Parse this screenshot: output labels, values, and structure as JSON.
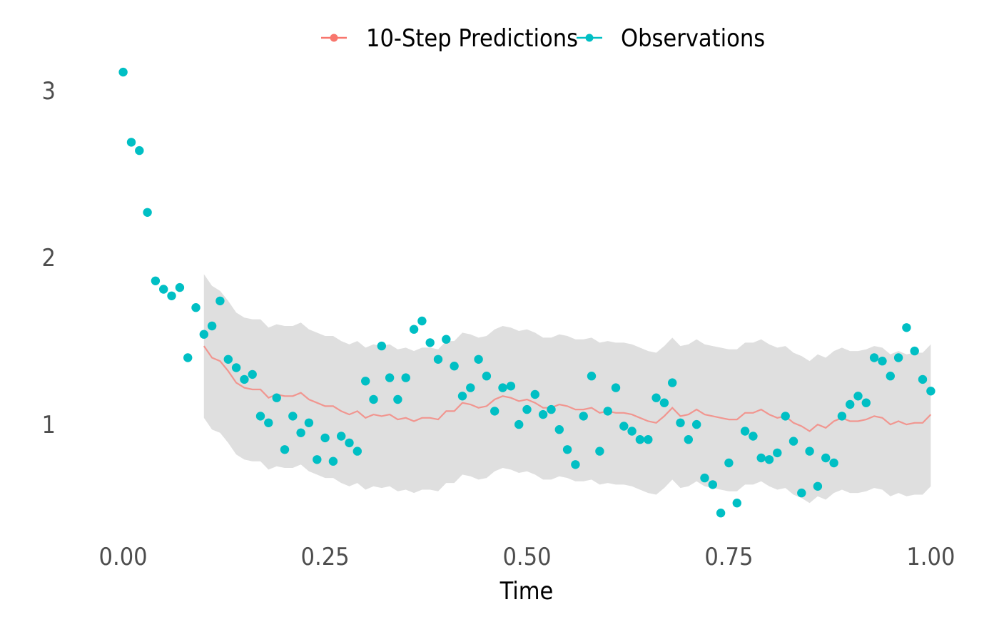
{
  "chart_data": {
    "type": "line",
    "title": "",
    "xlabel": "Time",
    "ylabel": "",
    "xlim": [
      -0.02,
      1.02
    ],
    "ylim": [
      0.36,
      3.2
    ],
    "x_ticks": [
      {
        "value": 0.0,
        "label": "0.00"
      },
      {
        "value": 0.25,
        "label": "0.25"
      },
      {
        "value": 0.5,
        "label": "0.50"
      },
      {
        "value": 0.75,
        "label": "0.75"
      },
      {
        "value": 1.0,
        "label": "1.00"
      }
    ],
    "y_ticks": [
      {
        "value": 1,
        "label": "1"
      },
      {
        "value": 2,
        "label": "2"
      },
      {
        "value": 3,
        "label": "3"
      }
    ],
    "grid": false,
    "legend": {
      "position": "top",
      "entries": [
        {
          "label": "10-Step Predictions",
          "color": "#F8766D"
        },
        {
          "label": "Observations",
          "color": "#00BFC4"
        }
      ]
    },
    "series": [
      {
        "name": "Observations",
        "type": "scatter",
        "color": "#00BFC4",
        "x": [
          0.0,
          0.01,
          0.02,
          0.03,
          0.04,
          0.05,
          0.06,
          0.07,
          0.08,
          0.09,
          0.1,
          0.11,
          0.12,
          0.13,
          0.14,
          0.15,
          0.16,
          0.17,
          0.18,
          0.19,
          0.2,
          0.21,
          0.22,
          0.23,
          0.24,
          0.25,
          0.26,
          0.27,
          0.28,
          0.29,
          0.3,
          0.31,
          0.32,
          0.33,
          0.34,
          0.35,
          0.36,
          0.37,
          0.38,
          0.39,
          0.4,
          0.41,
          0.42,
          0.43,
          0.44,
          0.45,
          0.46,
          0.47,
          0.48,
          0.49,
          0.5,
          0.51,
          0.52,
          0.53,
          0.54,
          0.55,
          0.56,
          0.57,
          0.58,
          0.59,
          0.6,
          0.61,
          0.62,
          0.63,
          0.64,
          0.65,
          0.66,
          0.67,
          0.68,
          0.69,
          0.7,
          0.71,
          0.72,
          0.73,
          0.74,
          0.75,
          0.76,
          0.77,
          0.78,
          0.79,
          0.8,
          0.81,
          0.82,
          0.83,
          0.84,
          0.85,
          0.86,
          0.87,
          0.88,
          0.89,
          0.9,
          0.91,
          0.92,
          0.93,
          0.94,
          0.95,
          0.96,
          0.97,
          0.98,
          0.99,
          1.0
        ],
        "y": [
          3.11,
          2.69,
          2.64,
          2.27,
          1.86,
          1.81,
          1.77,
          1.82,
          1.4,
          1.7,
          1.54,
          1.59,
          1.74,
          1.39,
          1.34,
          1.27,
          1.3,
          1.05,
          1.01,
          1.16,
          0.85,
          1.05,
          0.95,
          1.01,
          0.79,
          0.92,
          0.78,
          0.93,
          0.89,
          0.84,
          1.26,
          1.15,
          1.47,
          1.28,
          1.15,
          1.28,
          1.57,
          1.62,
          1.49,
          1.39,
          1.51,
          1.35,
          1.17,
          1.22,
          1.39,
          1.29,
          1.08,
          1.22,
          1.23,
          1.0,
          1.09,
          1.18,
          1.06,
          1.09,
          0.97,
          0.85,
          0.76,
          1.05,
          1.29,
          0.84,
          1.08,
          1.22,
          0.99,
          0.96,
          0.91,
          0.91,
          1.16,
          1.13,
          1.25,
          1.01,
          0.91,
          1.0,
          0.68,
          0.64,
          0.47,
          0.77,
          0.53,
          0.96,
          0.93,
          0.8,
          0.79,
          0.83,
          1.05,
          0.9,
          0.59,
          0.84,
          0.63,
          0.8,
          0.77,
          1.05,
          1.12,
          1.17,
          1.13,
          1.4,
          1.38,
          1.29,
          1.4,
          1.58,
          1.44,
          1.27,
          1.2
        ]
      },
      {
        "name": "10-Step Predictions",
        "type": "line",
        "color": "#F8766D",
        "x": [
          0.1,
          0.11,
          0.12,
          0.13,
          0.14,
          0.15,
          0.16,
          0.17,
          0.18,
          0.19,
          0.2,
          0.21,
          0.22,
          0.23,
          0.24,
          0.25,
          0.26,
          0.27,
          0.28,
          0.29,
          0.3,
          0.31,
          0.32,
          0.33,
          0.34,
          0.35,
          0.36,
          0.37,
          0.38,
          0.39,
          0.4,
          0.41,
          0.42,
          0.43,
          0.44,
          0.45,
          0.46,
          0.47,
          0.48,
          0.49,
          0.5,
          0.51,
          0.52,
          0.53,
          0.54,
          0.55,
          0.56,
          0.57,
          0.58,
          0.59,
          0.6,
          0.61,
          0.62,
          0.63,
          0.64,
          0.65,
          0.66,
          0.67,
          0.68,
          0.69,
          0.7,
          0.71,
          0.72,
          0.73,
          0.74,
          0.75,
          0.76,
          0.77,
          0.78,
          0.79,
          0.8,
          0.81,
          0.82,
          0.83,
          0.84,
          0.85,
          0.86,
          0.87,
          0.88,
          0.89,
          0.9,
          0.91,
          0.92,
          0.93,
          0.94,
          0.95,
          0.96,
          0.97,
          0.98,
          0.99,
          1.0
        ],
        "y": [
          1.47,
          1.4,
          1.38,
          1.32,
          1.25,
          1.22,
          1.21,
          1.21,
          1.16,
          1.18,
          1.17,
          1.17,
          1.19,
          1.15,
          1.13,
          1.11,
          1.11,
          1.08,
          1.06,
          1.08,
          1.04,
          1.06,
          1.05,
          1.06,
          1.03,
          1.04,
          1.02,
          1.04,
          1.04,
          1.03,
          1.08,
          1.08,
          1.13,
          1.12,
          1.1,
          1.11,
          1.15,
          1.17,
          1.16,
          1.14,
          1.15,
          1.13,
          1.1,
          1.1,
          1.12,
          1.11,
          1.09,
          1.09,
          1.1,
          1.07,
          1.08,
          1.07,
          1.07,
          1.06,
          1.04,
          1.02,
          1.01,
          1.05,
          1.1,
          1.05,
          1.06,
          1.09,
          1.06,
          1.05,
          1.04,
          1.03,
          1.03,
          1.07,
          1.07,
          1.09,
          1.06,
          1.04,
          1.05,
          1.01,
          0.99,
          0.96,
          1.0,
          0.98,
          1.02,
          1.04,
          1.02,
          1.02,
          1.03,
          1.05,
          1.04,
          1.0,
          1.02,
          1.0,
          1.01,
          1.01,
          1.06
        ]
      }
    ],
    "ribbon": {
      "color": "#d9d9d9",
      "x": [
        0.1,
        0.11,
        0.12,
        0.13,
        0.14,
        0.15,
        0.16,
        0.17,
        0.18,
        0.19,
        0.2,
        0.21,
        0.22,
        0.23,
        0.24,
        0.25,
        0.26,
        0.27,
        0.28,
        0.29,
        0.3,
        0.31,
        0.32,
        0.33,
        0.34,
        0.35,
        0.36,
        0.37,
        0.38,
        0.39,
        0.4,
        0.41,
        0.42,
        0.43,
        0.44,
        0.45,
        0.46,
        0.47,
        0.48,
        0.49,
        0.5,
        0.51,
        0.52,
        0.53,
        0.54,
        0.55,
        0.56,
        0.57,
        0.58,
        0.59,
        0.6,
        0.61,
        0.62,
        0.63,
        0.64,
        0.65,
        0.66,
        0.67,
        0.68,
        0.69,
        0.7,
        0.71,
        0.72,
        0.73,
        0.74,
        0.75,
        0.76,
        0.77,
        0.78,
        0.79,
        0.8,
        0.81,
        0.82,
        0.83,
        0.84,
        0.85,
        0.86,
        0.87,
        0.88,
        0.89,
        0.9,
        0.91,
        0.92,
        0.93,
        0.94,
        0.95,
        0.96,
        0.97,
        0.98,
        0.99,
        1.0
      ],
      "upper": [
        1.9,
        1.83,
        1.8,
        1.74,
        1.67,
        1.64,
        1.63,
        1.63,
        1.58,
        1.6,
        1.59,
        1.59,
        1.61,
        1.57,
        1.55,
        1.53,
        1.53,
        1.5,
        1.48,
        1.5,
        1.46,
        1.48,
        1.47,
        1.48,
        1.45,
        1.46,
        1.44,
        1.46,
        1.46,
        1.45,
        1.5,
        1.5,
        1.55,
        1.54,
        1.52,
        1.53,
        1.57,
        1.59,
        1.58,
        1.56,
        1.57,
        1.55,
        1.52,
        1.52,
        1.54,
        1.53,
        1.51,
        1.51,
        1.52,
        1.49,
        1.5,
        1.49,
        1.49,
        1.48,
        1.46,
        1.44,
        1.43,
        1.47,
        1.52,
        1.47,
        1.48,
        1.51,
        1.48,
        1.47,
        1.46,
        1.45,
        1.45,
        1.49,
        1.49,
        1.51,
        1.48,
        1.46,
        1.47,
        1.43,
        1.41,
        1.38,
        1.42,
        1.4,
        1.44,
        1.46,
        1.44,
        1.44,
        1.45,
        1.47,
        1.46,
        1.42,
        1.44,
        1.42,
        1.43,
        1.43,
        1.48
      ],
      "lower": [
        1.04,
        0.97,
        0.95,
        0.89,
        0.82,
        0.79,
        0.78,
        0.78,
        0.73,
        0.75,
        0.74,
        0.74,
        0.76,
        0.72,
        0.7,
        0.68,
        0.68,
        0.65,
        0.63,
        0.65,
        0.61,
        0.63,
        0.62,
        0.63,
        0.6,
        0.61,
        0.59,
        0.61,
        0.61,
        0.6,
        0.65,
        0.65,
        0.7,
        0.69,
        0.67,
        0.68,
        0.72,
        0.74,
        0.73,
        0.71,
        0.72,
        0.7,
        0.67,
        0.67,
        0.69,
        0.68,
        0.66,
        0.66,
        0.67,
        0.64,
        0.65,
        0.64,
        0.64,
        0.63,
        0.61,
        0.59,
        0.58,
        0.62,
        0.67,
        0.62,
        0.63,
        0.66,
        0.63,
        0.62,
        0.61,
        0.6,
        0.6,
        0.64,
        0.64,
        0.66,
        0.63,
        0.61,
        0.62,
        0.58,
        0.56,
        0.53,
        0.57,
        0.55,
        0.59,
        0.61,
        0.59,
        0.59,
        0.6,
        0.62,
        0.61,
        0.57,
        0.59,
        0.57,
        0.58,
        0.58,
        0.63
      ]
    }
  }
}
